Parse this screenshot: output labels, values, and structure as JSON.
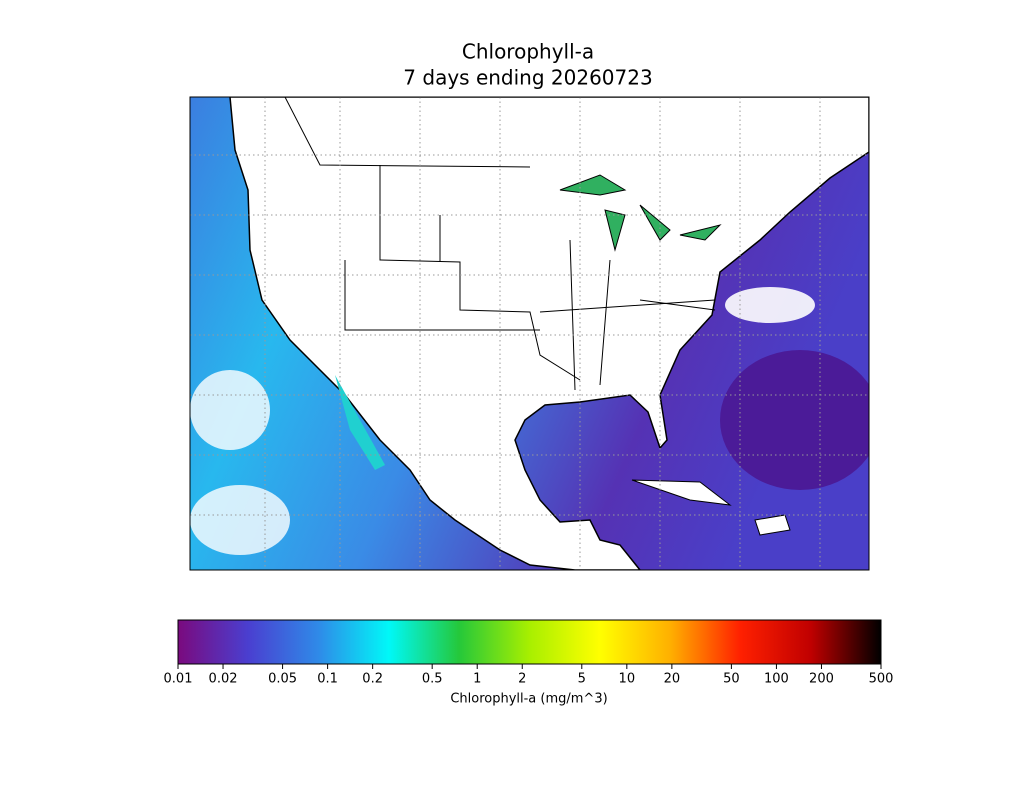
{
  "title_lines": [
    "Chlorophyll-a",
    "7 days ending 20260723"
  ],
  "colorbar": {
    "label": "Chlorophyll-a (mg/m^3)",
    "scale": "log",
    "lim": [
      0.01,
      500
    ],
    "ticks": [
      0.01,
      0.02,
      0.05,
      0.1,
      0.2,
      0.5,
      1,
      2,
      5,
      10,
      20,
      50,
      100,
      200,
      500
    ],
    "colors": [
      "#7a0a7e",
      "#4a3fd0",
      "#2f8ae8",
      "#00f8f8",
      "#25c83a",
      "#a8ef00",
      "#ffff00",
      "#ffb000",
      "#ff2000",
      "#c00000",
      "#000000"
    ]
  }
}
